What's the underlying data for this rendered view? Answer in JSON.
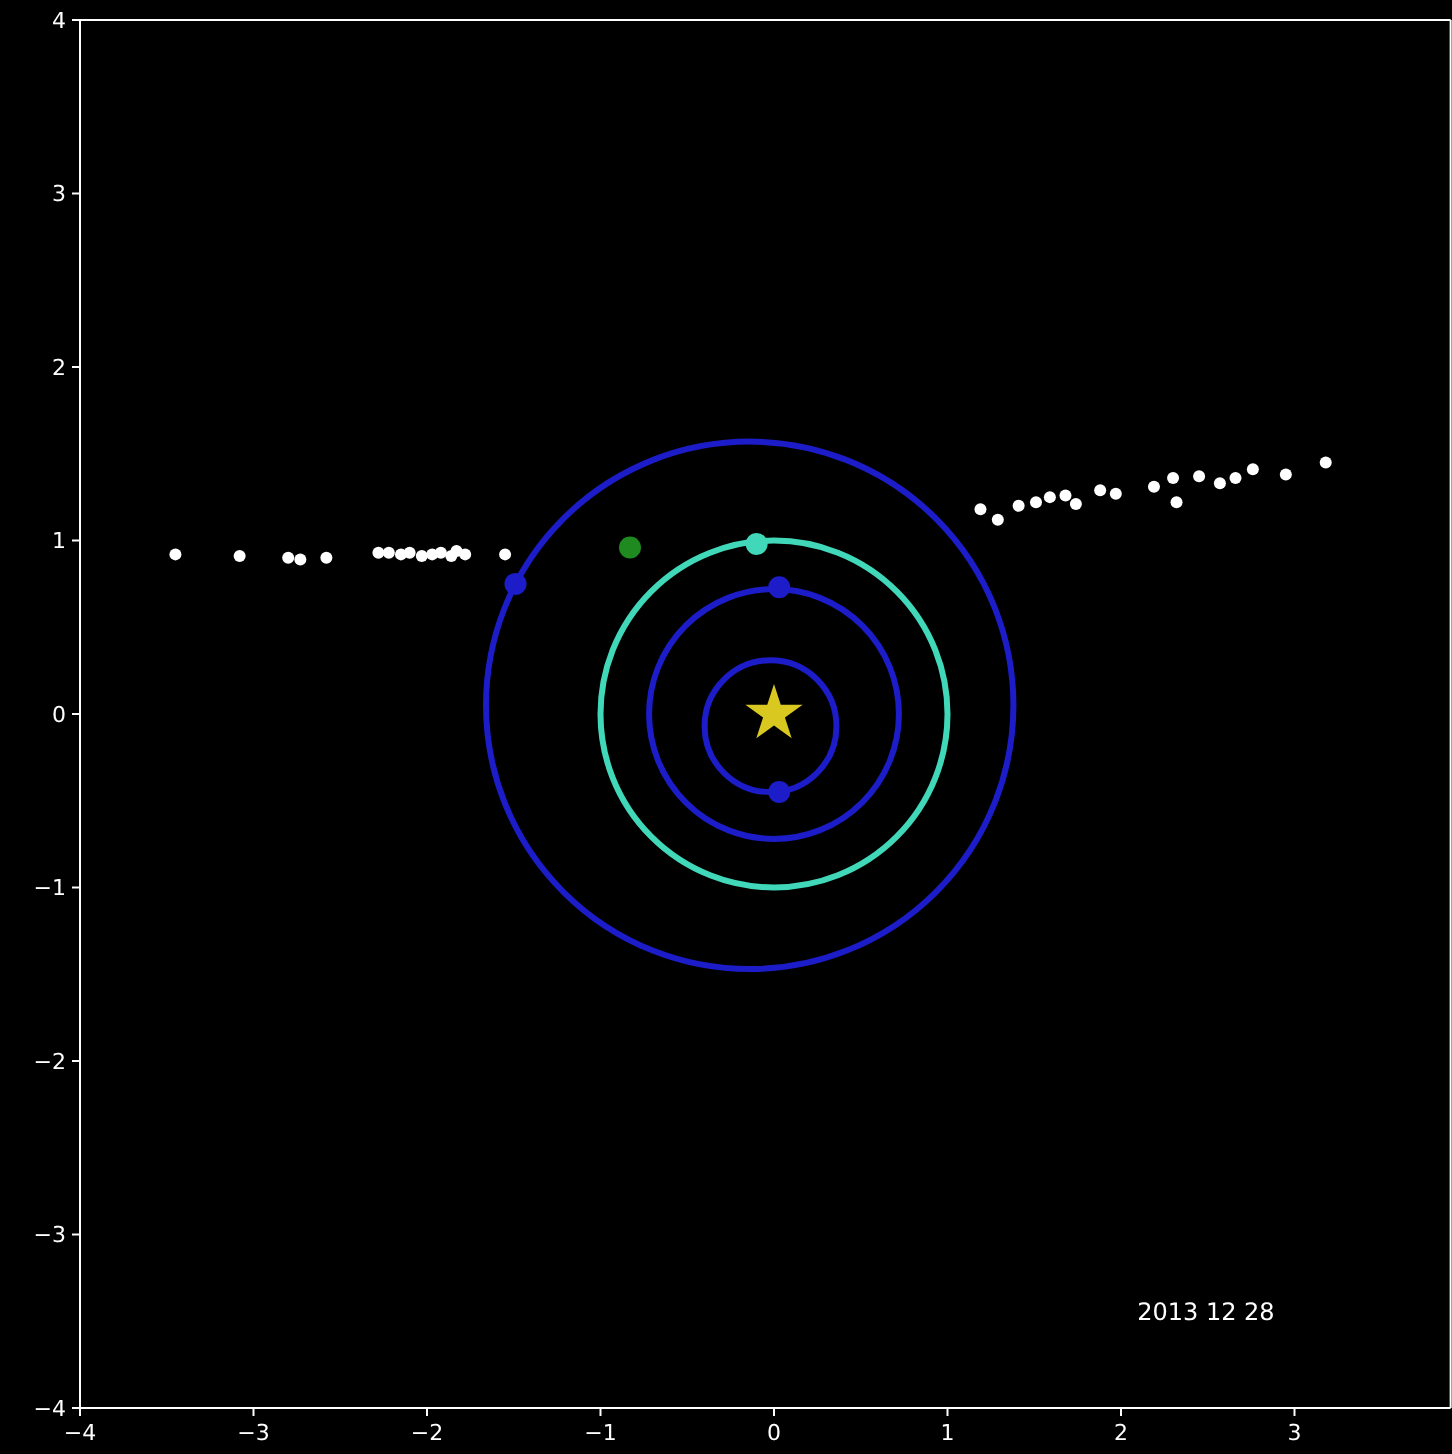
{
  "chart_data": {
    "type": "scatter",
    "xlim": [
      -4,
      3.9
    ],
    "ylim": [
      -4,
      4
    ],
    "xticks": [
      {
        "value": -4,
        "label": "−4"
      },
      {
        "value": -3,
        "label": "−3"
      },
      {
        "value": -2,
        "label": "−2"
      },
      {
        "value": -1,
        "label": "−1"
      },
      0,
      1,
      2,
      3
    ],
    "yticks": [
      {
        "value": -4,
        "label": "−4"
      },
      {
        "value": -3,
        "label": "−3"
      },
      {
        "value": -2,
        "label": "−2"
      },
      {
        "value": -1,
        "label": "−1"
      },
      0,
      1,
      2,
      3,
      4
    ],
    "annotations": [
      "2013 12 28"
    ],
    "series": [
      {
        "marker": "circle",
        "color": "#ffffff",
        "x": [
          -3.45,
          -3.08,
          -2.8,
          -2.73,
          -2.58,
          -2.28,
          -2.22,
          -2.15,
          -2.1,
          -2.03,
          -1.97,
          -1.92,
          -1.86,
          -1.83,
          -1.78,
          -1.55,
          1.19,
          1.29,
          1.41,
          1.51,
          1.59,
          1.68,
          1.74,
          1.88,
          1.97,
          2.19,
          2.3,
          2.32,
          2.45,
          2.57,
          2.66,
          2.76,
          2.95,
          3.18
        ],
        "values": [
          0.92,
          0.91,
          0.9,
          0.89,
          0.9,
          0.93,
          0.93,
          0.92,
          0.93,
          0.91,
          0.92,
          0.93,
          0.91,
          0.94,
          0.92,
          0.92,
          1.18,
          1.12,
          1.2,
          1.22,
          1.25,
          1.26,
          1.21,
          1.29,
          1.27,
          1.31,
          1.36,
          1.22,
          1.37,
          1.33,
          1.36,
          1.41,
          1.38,
          1.45
        ]
      },
      {
        "marker": "circle",
        "color": "#1c1cc8",
        "x": [
          -1.49,
          0.03,
          0.03
        ],
        "values": [
          0.75,
          0.73,
          -0.45
        ]
      },
      {
        "marker": "circle",
        "color": "#40d8b8",
        "x": [
          -0.1
        ],
        "values": [
          0.98
        ]
      },
      {
        "marker": "circle",
        "color": "#1f8a1f",
        "x": [
          -0.83
        ],
        "values": [
          0.96
        ]
      },
      {
        "marker": "star",
        "color": "#d8c820",
        "x": [
          0
        ],
        "values": [
          0
        ]
      }
    ]
  }
}
